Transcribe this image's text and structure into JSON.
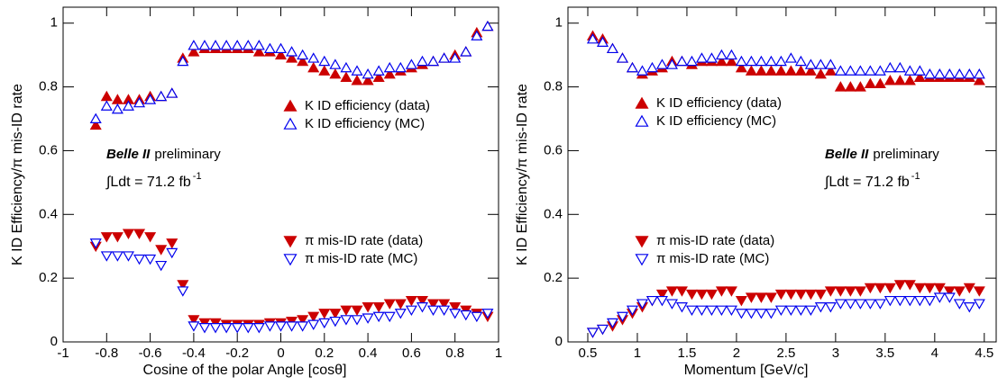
{
  "chart_data": [
    {
      "type": "scatter",
      "xlabel": "Cosine of the polar Angle [cosθ]",
      "ylabel": "K ID Efficiency/π mis-ID rate",
      "xlim": [
        -1,
        1
      ],
      "ylim": [
        0,
        1.05
      ],
      "xticks": [
        -1,
        -0.8,
        -0.6,
        -0.4,
        -0.2,
        0,
        0.2,
        0.4,
        0.6,
        0.8,
        1
      ],
      "yticks": [
        0,
        0.2,
        0.4,
        0.6,
        0.8,
        1
      ],
      "annotations": {
        "brand": "Belle II",
        "note": "preliminary",
        "lumi": "∫Ldt = 71.2 fb",
        "lumi_exp": "-1"
      },
      "x": [
        -0.85,
        -0.8,
        -0.75,
        -0.7,
        -0.65,
        -0.6,
        -0.55,
        -0.5,
        -0.45,
        -0.4,
        -0.35,
        -0.3,
        -0.25,
        -0.2,
        -0.15,
        -0.1,
        -0.05,
        0,
        0.05,
        0.1,
        0.15,
        0.2,
        0.25,
        0.3,
        0.35,
        0.4,
        0.45,
        0.5,
        0.55,
        0.6,
        0.65,
        0.7,
        0.75,
        0.8,
        0.85,
        0.9,
        0.95
      ],
      "series": [
        {
          "name": "K ID efficiency (data)",
          "color": "#cc0000",
          "marker": "triangle-up",
          "filled": true,
          "values": [
            0.68,
            0.77,
            0.76,
            0.76,
            0.76,
            0.77,
            0.77,
            0.78,
            0.89,
            0.91,
            0.92,
            0.92,
            0.92,
            0.92,
            0.92,
            0.91,
            0.91,
            0.9,
            0.89,
            0.88,
            0.86,
            0.85,
            0.84,
            0.83,
            0.82,
            0.82,
            0.83,
            0.84,
            0.85,
            0.86,
            0.87,
            0.88,
            0.89,
            0.9,
            0.91,
            0.97,
            0.99
          ]
        },
        {
          "name": "K ID efficiency (MC)",
          "color": "#0000ee",
          "marker": "triangle-up",
          "filled": false,
          "values": [
            0.7,
            0.74,
            0.73,
            0.74,
            0.75,
            0.76,
            0.77,
            0.78,
            0.88,
            0.93,
            0.93,
            0.93,
            0.93,
            0.93,
            0.93,
            0.93,
            0.92,
            0.92,
            0.91,
            0.9,
            0.89,
            0.88,
            0.87,
            0.86,
            0.85,
            0.84,
            0.85,
            0.86,
            0.86,
            0.87,
            0.88,
            0.88,
            0.89,
            0.89,
            0.91,
            0.96,
            0.99
          ]
        },
        {
          "name": "π mis-ID rate (data)",
          "color": "#cc0000",
          "marker": "triangle-down",
          "filled": true,
          "values": [
            0.3,
            0.33,
            0.33,
            0.34,
            0.34,
            0.33,
            0.29,
            0.31,
            0.18,
            0.07,
            0.06,
            0.06,
            0.055,
            0.055,
            0.055,
            0.055,
            0.06,
            0.06,
            0.065,
            0.07,
            0.08,
            0.09,
            0.09,
            0.1,
            0.1,
            0.11,
            0.11,
            0.12,
            0.12,
            0.13,
            0.13,
            0.12,
            0.12,
            0.11,
            0.1,
            0.09,
            0.08
          ]
        },
        {
          "name": "π mis-ID rate (MC)",
          "color": "#0000ee",
          "marker": "triangle-down",
          "filled": false,
          "values": [
            0.31,
            0.27,
            0.27,
            0.27,
            0.26,
            0.26,
            0.24,
            0.28,
            0.16,
            0.05,
            0.045,
            0.045,
            0.045,
            0.045,
            0.045,
            0.045,
            0.05,
            0.05,
            0.05,
            0.05,
            0.055,
            0.06,
            0.065,
            0.07,
            0.07,
            0.075,
            0.08,
            0.08,
            0.09,
            0.1,
            0.11,
            0.1,
            0.1,
            0.09,
            0.085,
            0.08,
            0.09
          ]
        }
      ]
    },
    {
      "type": "scatter",
      "xlabel": "Momentum [GeV/c]",
      "ylabel": "K ID Efficiency/π mis-ID rate",
      "xlim": [
        0.3,
        4.62
      ],
      "ylim": [
        0,
        1.05
      ],
      "xticks": [
        0.5,
        1,
        1.5,
        2,
        2.5,
        3,
        3.5,
        4,
        4.5
      ],
      "yticks": [
        0,
        0.2,
        0.4,
        0.6,
        0.8,
        1
      ],
      "annotations": {
        "brand": "Belle II",
        "note": "preliminary",
        "lumi": "∫Ldt = 71.2 fb",
        "lumi_exp": "-1"
      },
      "x": [
        0.55,
        0.65,
        0.75,
        0.85,
        0.95,
        1.05,
        1.15,
        1.25,
        1.35,
        1.45,
        1.55,
        1.65,
        1.75,
        1.85,
        1.95,
        2.05,
        2.15,
        2.25,
        2.35,
        2.45,
        2.55,
        2.65,
        2.75,
        2.85,
        2.95,
        3.05,
        3.15,
        3.25,
        3.35,
        3.45,
        3.55,
        3.65,
        3.75,
        3.85,
        3.95,
        4.05,
        4.15,
        4.25,
        4.35,
        4.45
      ],
      "series": [
        {
          "name": "K ID efficiency (data)",
          "color": "#cc0000",
          "marker": "triangle-up",
          "filled": true,
          "values": [
            0.96,
            0.95,
            0.92,
            0.89,
            0.86,
            0.84,
            0.85,
            0.86,
            0.88,
            0.88,
            0.87,
            0.88,
            0.88,
            0.88,
            0.88,
            0.86,
            0.85,
            0.85,
            0.85,
            0.85,
            0.85,
            0.85,
            0.85,
            0.84,
            0.85,
            0.8,
            0.8,
            0.8,
            0.81,
            0.81,
            0.82,
            0.82,
            0.82,
            0.83,
            0.83,
            0.83,
            0.83,
            0.83,
            0.83,
            0.82
          ]
        },
        {
          "name": "K ID efficiency (MC)",
          "color": "#0000ee",
          "marker": "triangle-up",
          "filled": false,
          "values": [
            0.95,
            0.94,
            0.92,
            0.89,
            0.86,
            0.85,
            0.86,
            0.87,
            0.87,
            0.88,
            0.88,
            0.89,
            0.89,
            0.9,
            0.9,
            0.88,
            0.88,
            0.88,
            0.88,
            0.88,
            0.89,
            0.88,
            0.87,
            0.87,
            0.87,
            0.85,
            0.85,
            0.85,
            0.85,
            0.85,
            0.86,
            0.86,
            0.85,
            0.85,
            0.84,
            0.84,
            0.84,
            0.84,
            0.84,
            0.84
          ]
        },
        {
          "name": "π mis-ID rate (data)",
          "color": "#cc0000",
          "marker": "triangle-down",
          "filled": true,
          "values": [
            0.03,
            0.04,
            0.05,
            0.07,
            0.09,
            0.11,
            0.13,
            0.15,
            0.16,
            0.16,
            0.15,
            0.15,
            0.15,
            0.16,
            0.16,
            0.13,
            0.14,
            0.14,
            0.14,
            0.15,
            0.15,
            0.15,
            0.15,
            0.15,
            0.16,
            0.16,
            0.16,
            0.16,
            0.17,
            0.17,
            0.17,
            0.18,
            0.18,
            0.17,
            0.17,
            0.17,
            0.16,
            0.16,
            0.17,
            0.16
          ]
        },
        {
          "name": "π mis-ID rate (MC)",
          "color": "#0000ee",
          "marker": "triangle-down",
          "filled": false,
          "values": [
            0.03,
            0.04,
            0.06,
            0.08,
            0.1,
            0.12,
            0.13,
            0.13,
            0.12,
            0.11,
            0.1,
            0.1,
            0.1,
            0.1,
            0.1,
            0.09,
            0.09,
            0.09,
            0.09,
            0.1,
            0.1,
            0.1,
            0.1,
            0.11,
            0.11,
            0.12,
            0.12,
            0.12,
            0.12,
            0.12,
            0.13,
            0.13,
            0.13,
            0.13,
            0.13,
            0.14,
            0.14,
            0.12,
            0.11,
            0.12
          ]
        }
      ]
    }
  ]
}
